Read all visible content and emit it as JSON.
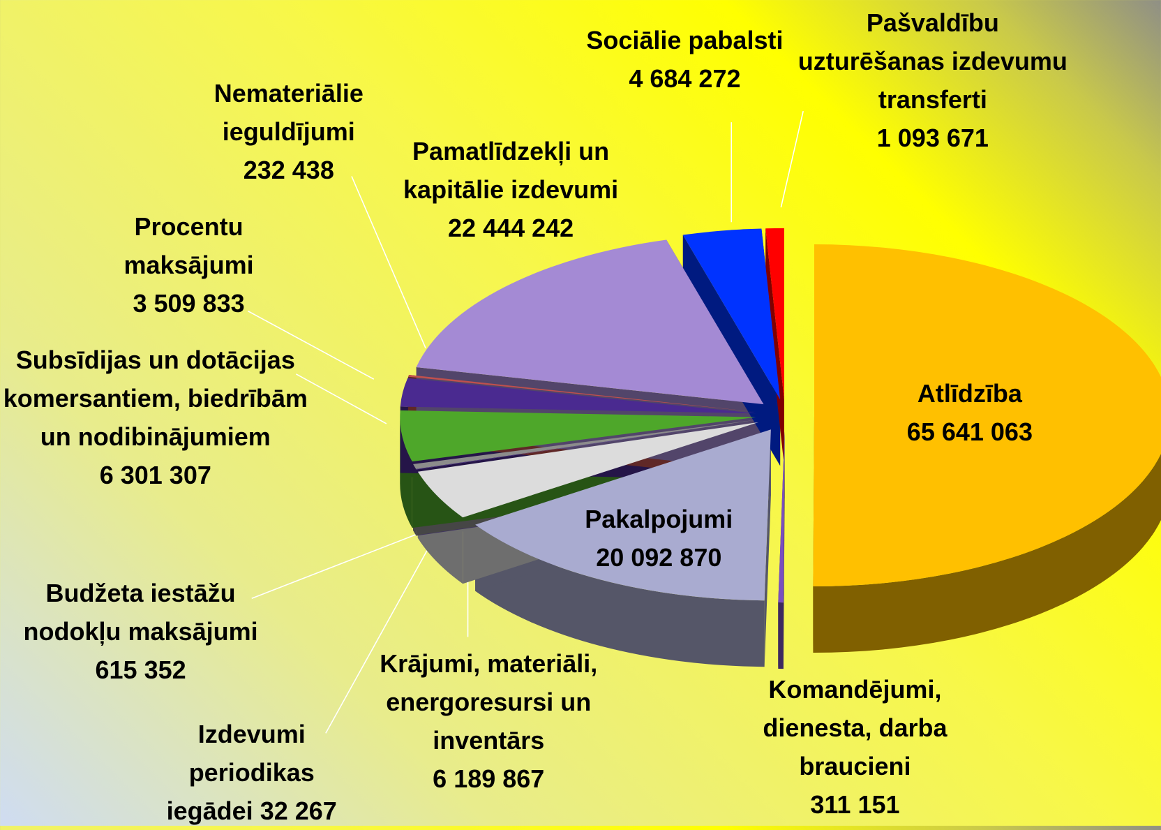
{
  "chart_data": {
    "type": "pie",
    "categories": [
      "Atlīdzība",
      "Komandējumi, dienesta, darba braucieni",
      "Pakalpojumi",
      "Krājumi, materiāli, energoresursi un inventārs",
      "Izdevumi periodikas iegādei",
      "Budžeta iestāžu nodokļu maksājumi",
      "Subsīdijas un dotācijas komersantiem, biedrībām un nodibinājumiem",
      "Procentu maksājumi",
      "Nemateriālie ieguldījumi",
      "Pamatlīdzekļi un kapitālie izdevumi",
      "Sociālie pabalsti",
      "Pašvaldību uzturēšanas izdevumu transferti"
    ],
    "values": [
      65641063,
      311151,
      20092870,
      6189867,
      32267,
      615352,
      6301307,
      3509833,
      232438,
      22444242,
      4684272,
      1093671
    ],
    "value_labels": [
      "65 641 063",
      "311 151",
      "20 092 870",
      "6 189 867",
      "32 267",
      "615 352",
      "6 301 307",
      "3 509 833",
      "232 438",
      "22 444 242",
      "4 684 272",
      "1 093 671"
    ],
    "colors": [
      "#ffc000",
      "#7a4fc0",
      "#a9abd0",
      "#dcdcdc",
      "#8064c8",
      "#8c8c8c",
      "#4ea72a",
      "#4a2a90",
      "#c0504d",
      "#a48ad4",
      "#0033ff",
      "#ff0000"
    ]
  }
}
